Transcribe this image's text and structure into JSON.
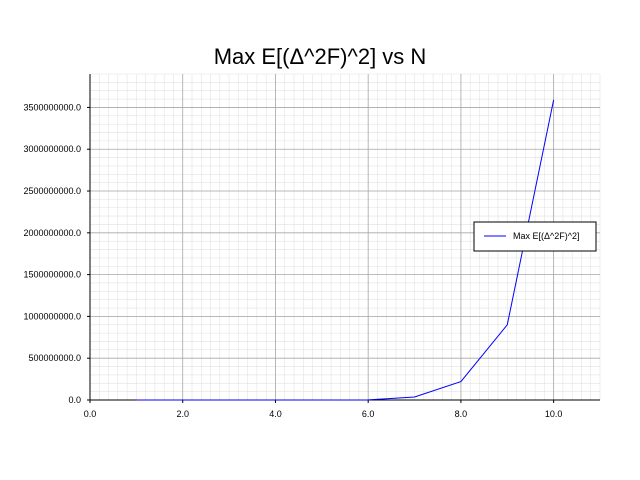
{
  "chart_data": {
    "type": "line",
    "title": "Max E[(Δ^2F)^2] vs N",
    "xlabel": "",
    "ylabel": "",
    "xlim": [
      0,
      11
    ],
    "ylim": [
      0,
      3900000000
    ],
    "x_ticks": [
      0,
      2,
      4,
      6,
      8,
      10
    ],
    "x_tick_labels": [
      "0.0",
      "2.0",
      "4.0",
      "6.0",
      "8.0",
      "10.0"
    ],
    "y_ticks": [
      0,
      500000000,
      1000000000,
      1500000000,
      2000000000,
      2500000000,
      3000000000,
      3500000000
    ],
    "y_tick_labels": [
      "0.0",
      "500000000.0",
      "1000000000.0",
      "1500000000.0",
      "2000000000.0",
      "2500000000.0",
      "3000000000.0",
      "3500000000.0"
    ],
    "grid": true,
    "minor_grid": true,
    "legend_position": "right",
    "series": [
      {
        "name": "Max E[(Δ^2F)^2]",
        "color": "#0000ff",
        "x": [
          1,
          2,
          3,
          4,
          5,
          6,
          7,
          8,
          9,
          10
        ],
        "y": [
          0,
          100,
          1000,
          10000,
          100000,
          1000000,
          36000000,
          220000000,
          900000000,
          3590000000
        ]
      }
    ]
  }
}
